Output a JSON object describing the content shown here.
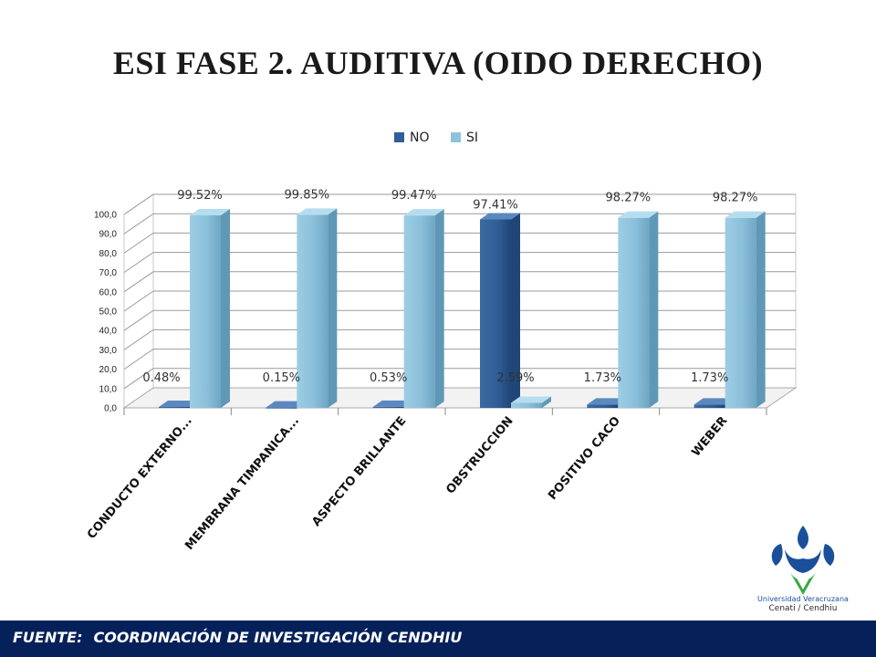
{
  "title": "ESI FASE 2. AUDITIVA (OIDO DERECHO)",
  "footer": {
    "label": "FUENTE:",
    "text": "COORDINACIÓN DE INVESTIGACIÓN CENDHIU"
  },
  "logo": {
    "line1": "Universidad Veracruzana",
    "line2": "Cenati / Cendhiu"
  },
  "colors": {
    "no": "#2f5f96",
    "si": "#8fc3dc",
    "footer_bg": "#06215a"
  },
  "chart_data": {
    "type": "bar",
    "categories": [
      "CONDUCTO EXTERNO...",
      "MEMBRANA TIMPANICA...",
      "ASPECTO BRILLANTE",
      "OBSTRUCCION",
      "POSITIVO CACO",
      "WEBER"
    ],
    "series": [
      {
        "name": "NO",
        "values": [
          0.48,
          0.15,
          0.53,
          97.41,
          1.73,
          1.73
        ],
        "labels": [
          "0.48%",
          "0.15%",
          "0.53%",
          "97.41%",
          "1.73%",
          "1.73%"
        ]
      },
      {
        "name": "SI",
        "values": [
          99.52,
          99.85,
          99.47,
          2.59,
          98.27,
          98.27
        ],
        "labels": [
          "99.52%",
          "99.85%",
          "99.47%",
          "2.59%",
          "98.27%",
          "98.27%"
        ]
      }
    ],
    "yticks": [
      "0,0",
      "10,0",
      "20,0",
      "30,0",
      "40,0",
      "50,0",
      "60,0",
      "70,0",
      "80,0",
      "90,0",
      "100,0"
    ],
    "ylim": [
      0,
      100
    ],
    "grid": true,
    "legend_position": "top-center",
    "style": "3d-clustered-column"
  }
}
